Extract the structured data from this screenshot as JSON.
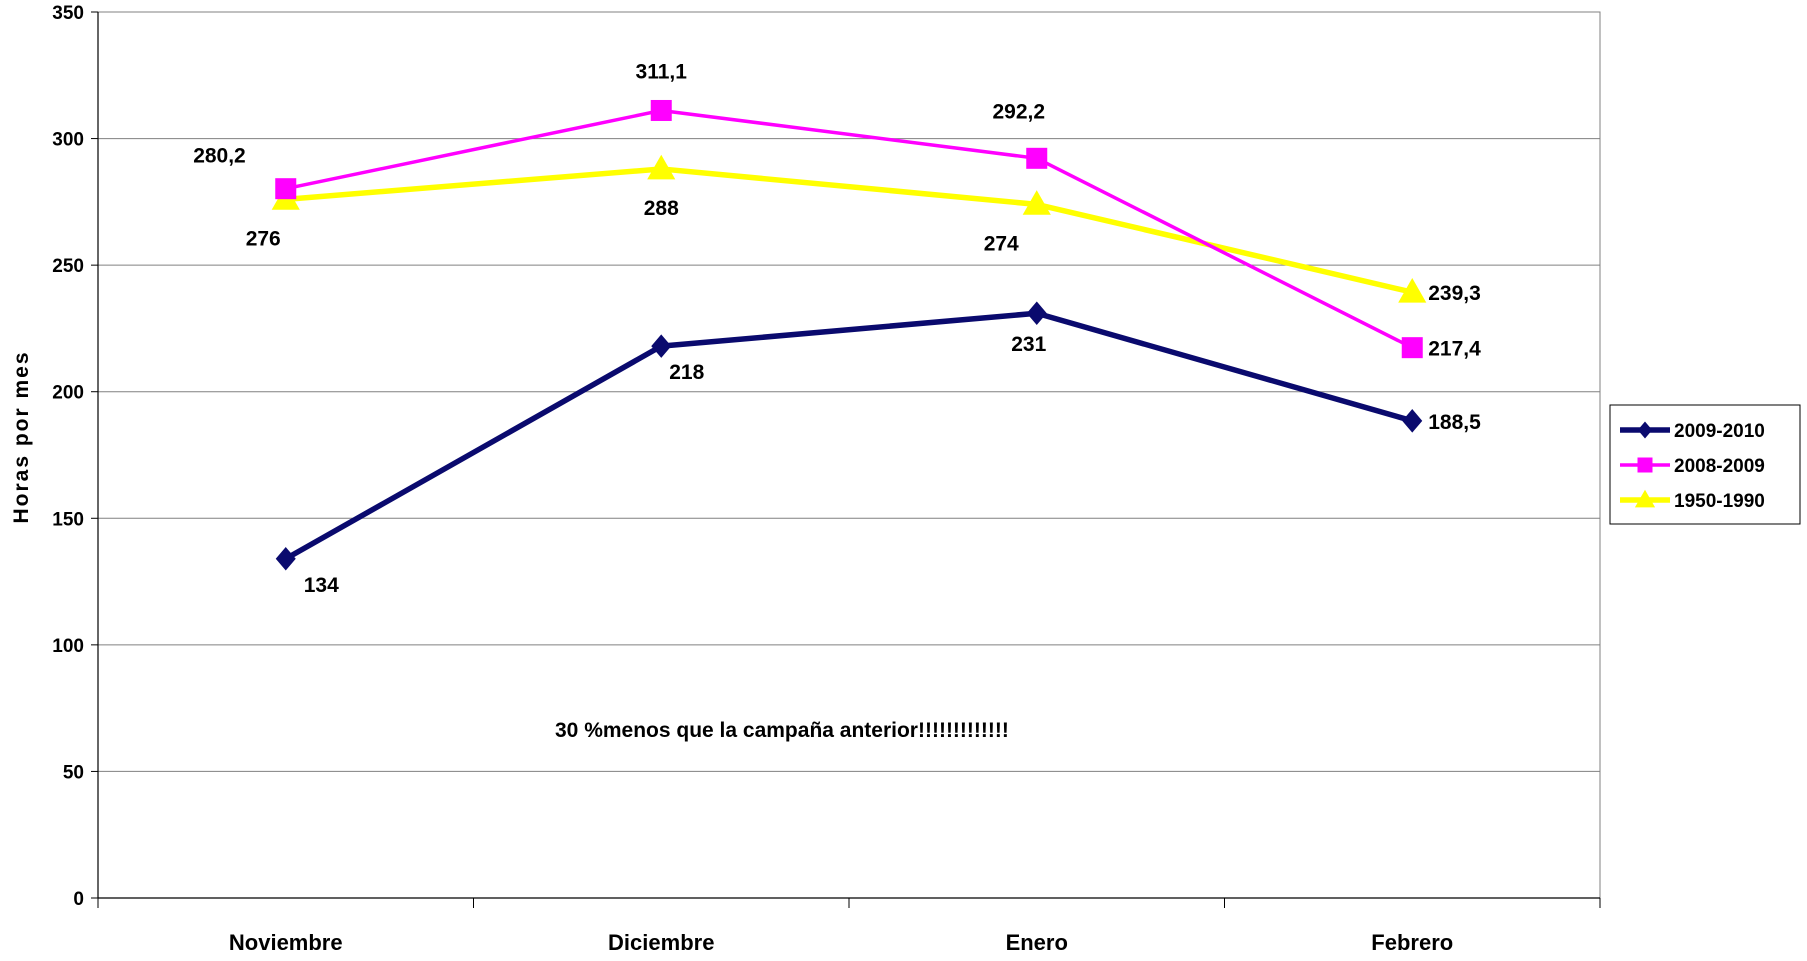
{
  "chart_data": {
    "type": "line",
    "categories": [
      "Noviembre",
      "Diciembre",
      "Enero",
      "Febrero"
    ],
    "ylabel": "Horas por mes",
    "ylim": [
      0,
      350
    ],
    "yticks": [
      0,
      50,
      100,
      150,
      200,
      250,
      300,
      350
    ],
    "grid": true,
    "legend": "right",
    "annotation": "30 %menos que la campaña anterior!!!!!!!!!!!!!",
    "series": [
      {
        "name": "2009-2010",
        "values": [
          134,
          218,
          231,
          188.5
        ],
        "labels": [
          "134",
          "218",
          "231",
          "188,5"
        ],
        "color": "#0a0a6e",
        "marker": "diamond"
      },
      {
        "name": "2008-2009",
        "values": [
          280.2,
          311.1,
          292.2,
          217.4
        ],
        "labels": [
          "280,2",
          "311,1",
          "292,2",
          "217,4"
        ],
        "color": "#ff00ff",
        "marker": "square"
      },
      {
        "name": "1950-1990",
        "values": [
          276,
          288,
          274,
          239.3
        ],
        "labels": [
          "276",
          "288",
          "274",
          "239,3"
        ],
        "color": "#ffff00",
        "marker": "triangle"
      }
    ]
  }
}
